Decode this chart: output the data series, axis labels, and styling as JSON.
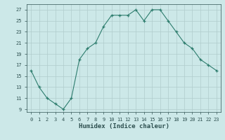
{
  "x": [
    0,
    1,
    2,
    3,
    4,
    5,
    6,
    7,
    8,
    9,
    10,
    11,
    12,
    13,
    14,
    15,
    16,
    17,
    18,
    19,
    20,
    21,
    22,
    23
  ],
  "y": [
    16,
    13,
    11,
    10,
    9,
    11,
    18,
    20,
    21,
    24,
    26,
    26,
    26,
    27,
    25,
    27,
    27,
    25,
    23,
    21,
    20,
    18,
    17,
    16
  ],
  "xlabel": "Humidex (Indice chaleur)",
  "xlim": [
    -0.5,
    23.5
  ],
  "ylim": [
    8.5,
    28
  ],
  "yticks": [
    9,
    11,
    13,
    15,
    17,
    19,
    21,
    23,
    25,
    27
  ],
  "xticks": [
    0,
    1,
    2,
    3,
    4,
    5,
    6,
    7,
    8,
    9,
    10,
    11,
    12,
    13,
    14,
    15,
    16,
    17,
    18,
    19,
    20,
    21,
    22,
    23
  ],
  "line_color": "#2e7d6e",
  "marker": "+",
  "bg_color": "#cce8e8",
  "grid_color": "#b0cccc",
  "label_color": "#2e5050",
  "tick_color": "#2e5050"
}
